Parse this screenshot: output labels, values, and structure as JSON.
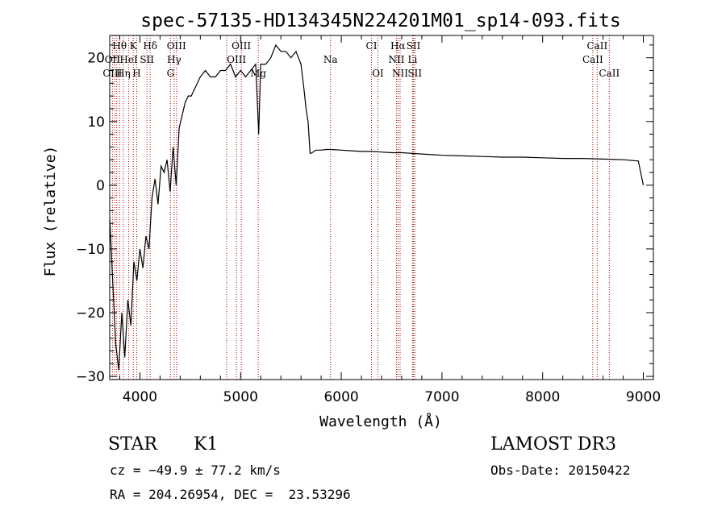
{
  "chart_data": {
    "type": "line",
    "title": "spec-57135-HD134345N224201M01_sp14-093.fits",
    "xlabel": "Wavelength (Å)",
    "ylabel": "Flux (relative)",
    "xlim": [
      3700,
      9100
    ],
    "ylim": [
      -30.5,
      23.5
    ],
    "xticks": [
      "4000",
      "5000",
      "6000",
      "7000",
      "8000",
      "9000"
    ],
    "yticks": [
      "−30",
      "−20",
      "−10",
      "0",
      "10",
      "20"
    ],
    "grid": false,
    "series": [
      {
        "x": [
          3700,
          3730,
          3760,
          3790,
          3820,
          3850,
          3880,
          3910,
          3940,
          3970,
          4000,
          4030,
          4060,
          4090,
          4120,
          4150,
          4180,
          4210,
          4240,
          4270,
          4300,
          4330,
          4360,
          4390,
          4420,
          4450,
          4480,
          4510,
          4540,
          4570,
          4600,
          4650,
          4700,
          4750,
          4800,
          4850,
          4900,
          4950,
          5000,
          5050,
          5100,
          5150,
          5180,
          5200,
          5250,
          5300,
          5350,
          5400,
          5450,
          5500,
          5550,
          5600,
          5630,
          5650,
          5670,
          5690,
          5700,
          5750,
          5800,
          5850,
          5900,
          6000,
          6100,
          6200,
          6300,
          6400,
          6500,
          6600,
          6700,
          6800,
          6900,
          7000,
          7200,
          7400,
          7600,
          7800,
          8000,
          8200,
          8400,
          8600,
          8800,
          8950,
          9000
        ],
        "y": [
          -5,
          -15,
          -25,
          -29,
          -20,
          -27,
          -18,
          -22,
          -12,
          -15,
          -10,
          -13,
          -8,
          -10,
          -2,
          1,
          -3,
          3,
          2,
          4,
          -1,
          6,
          0,
          9,
          11,
          13,
          14,
          14,
          15,
          16,
          17,
          18,
          17,
          17,
          18,
          18,
          19,
          17,
          18,
          17,
          18,
          19,
          8,
          19,
          19,
          20,
          22,
          21,
          21,
          20,
          21,
          19,
          15,
          12,
          10,
          5,
          5,
          5.5,
          5.5,
          5.6,
          5.6,
          5.5,
          5.4,
          5.3,
          5.3,
          5.2,
          5.1,
          5.1,
          5.0,
          4.9,
          4.8,
          4.7,
          4.6,
          4.5,
          4.4,
          4.4,
          4.3,
          4.2,
          4.2,
          4.1,
          4.0,
          3.8,
          0
        ]
      }
    ],
    "line_labels": [
      {
        "text": "Hθ",
        "x": 3798,
        "tier": 0
      },
      {
        "text": "K",
        "x": 3934,
        "tier": 0
      },
      {
        "text": "Hδ",
        "x": 4102,
        "tier": 0
      },
      {
        "text": "OIII",
        "x": 4363,
        "tier": 0
      },
      {
        "text": "OIII",
        "x": 5007,
        "tier": 0
      },
      {
        "text": "CI",
        "x": 6300,
        "tier": 0
      },
      {
        "text": "Hα",
        "x": 6563,
        "tier": 0
      },
      {
        "text": "SII",
        "x": 6717,
        "tier": 0
      },
      {
        "text": "CaII",
        "x": 8542,
        "tier": 0
      },
      {
        "text": "OII",
        "x": 3727,
        "tier": 1
      },
      {
        "text": "HeI",
        "x": 3889,
        "tier": 1
      },
      {
        "text": "SII",
        "x": 4070,
        "tier": 1
      },
      {
        "text": "Hγ",
        "x": 4340,
        "tier": 1
      },
      {
        "text": "OIII",
        "x": 4959,
        "tier": 1
      },
      {
        "text": "Na",
        "x": 5893,
        "tier": 1
      },
      {
        "text": "NII",
        "x": 6548,
        "tier": 1
      },
      {
        "text": "Li",
        "x": 6708,
        "tier": 1
      },
      {
        "text": "CaII",
        "x": 8498,
        "tier": 1
      },
      {
        "text": "OIII",
        "x": 3727,
        "tier": 2
      },
      {
        "text": "Hη",
        "x": 3835,
        "tier": 2
      },
      {
        "text": "H",
        "x": 3968,
        "tier": 2
      },
      {
        "text": "G",
        "x": 4304,
        "tier": 2
      },
      {
        "text": "Mg",
        "x": 5175,
        "tier": 2
      },
      {
        "text": "OI",
        "x": 6364,
        "tier": 2
      },
      {
        "text": "NII",
        "x": 6584,
        "tier": 2
      },
      {
        "text": "SII",
        "x": 6731,
        "tier": 2
      },
      {
        "text": "CaII",
        "x": 8662,
        "tier": 2
      }
    ],
    "line_marker_x": [
      3727,
      3750,
      3770,
      3798,
      3835,
      3889,
      3934,
      3968,
      4070,
      4102,
      4304,
      4340,
      4363,
      4861,
      4959,
      5007,
      5175,
      5893,
      6300,
      6364,
      6548,
      6563,
      6584,
      6708,
      6717,
      6731,
      8498,
      8542,
      8662
    ],
    "colors": {
      "spectrum": "#000000",
      "line_markers": "#b00000",
      "axes": "#000000"
    }
  },
  "info": {
    "object_class": "STAR",
    "subclass": "K1",
    "cz": "cz = −49.9 ± 77.2 km/s",
    "coords": "RA = 204.26954, DEC =  23.53296",
    "survey": "LAMOST DR3",
    "obs_date": "Obs-Date: 20150422"
  }
}
